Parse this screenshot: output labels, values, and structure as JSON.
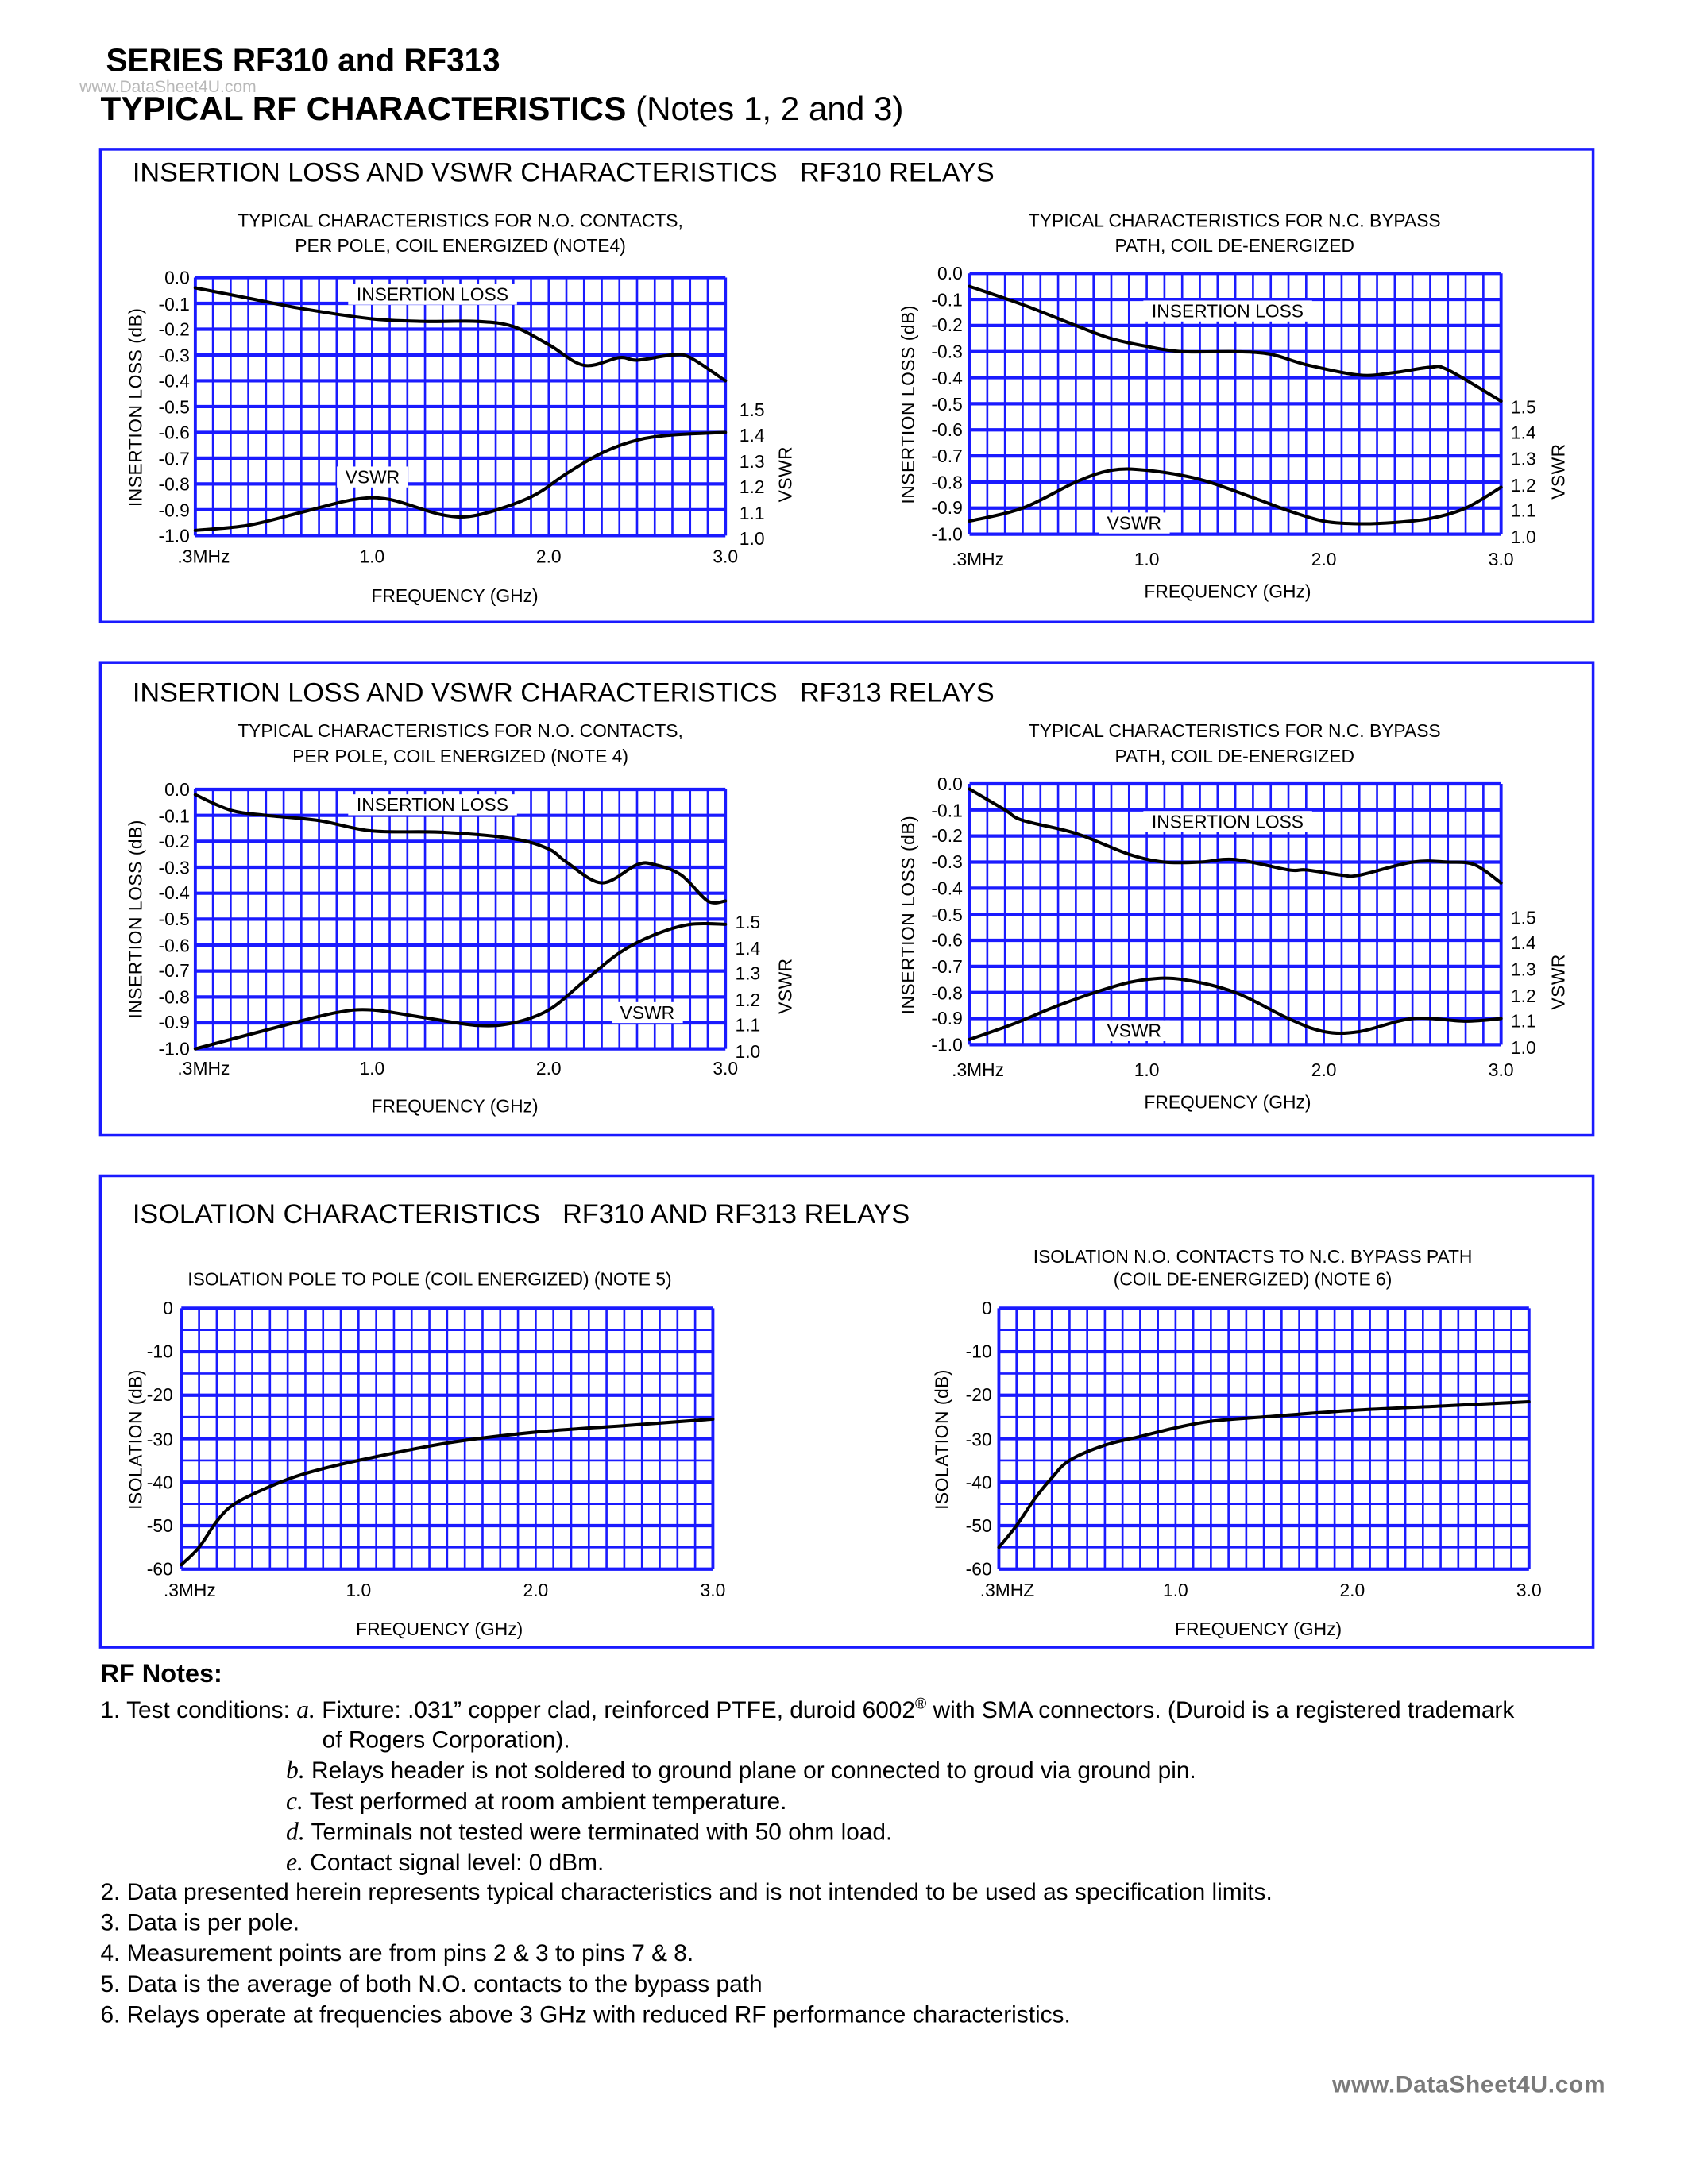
{
  "header": {
    "series_title": "SERIES RF310 and RF313",
    "watermark": "www.DataSheet4U.com",
    "main_title_bold": "TYPICAL RF CHARACTERISTICS",
    "main_title_notes": "(Notes 1, 2 and 3)"
  },
  "sections": [
    {
      "title": "INSERTION LOSS AND VSWR CHARACTERISTICS",
      "subtitle": "RF310 RELAYS"
    },
    {
      "title": "INSERTION LOSS AND VSWR CHARACTERISTICS",
      "subtitle": "RF313 RELAYS"
    },
    {
      "title": "ISOLATION CHARACTERISTICS",
      "subtitle": "RF310 AND RF313 RELAYS"
    }
  ],
  "colors": {
    "grid": "#1a1aff",
    "curve": "#000000",
    "border": "#1a1aff"
  },
  "chart_data": [
    {
      "type": "line",
      "title_lines": [
        "TYPICAL CHARACTERISTICS FOR N.O. CONTACTS,",
        "PER POLE, COIL ENERGIZED (NOTE4)"
      ],
      "xlabel": "FREQUENCY (GHz)",
      "ylabel": "INSERTION LOSS (dB)",
      "y2label": "VSWR",
      "xlim": [
        0,
        3
      ],
      "ylim": [
        -1.0,
        0.0
      ],
      "y2lim": [
        1.0,
        2.0
      ],
      "grid": true,
      "grid_columns": 30,
      "x_ticks": [
        {
          "value": 0,
          "label": ".3MHz"
        },
        {
          "value": 1,
          "label": "1.0"
        },
        {
          "value": 2,
          "label": "2.0"
        },
        {
          "value": 3,
          "label": "3.0"
        }
      ],
      "y_ticks": [
        "0.0",
        "-0.1",
        "-0.2",
        "-0.3",
        "-0.4",
        "-0.5",
        "-0.6",
        "-0.7",
        "-0.8",
        "-0.9",
        "-1.0"
      ],
      "y2_ticks": [
        "1.5",
        "1.4",
        "1.3",
        "1.2",
        "1.1",
        "1.0"
      ],
      "series": [
        {
          "name": "INSERTION LOSS",
          "axis": "left",
          "points": [
            [
              0,
              -0.04
            ],
            [
              0.3,
              -0.08
            ],
            [
              0.6,
              -0.12
            ],
            [
              1.0,
              -0.16
            ],
            [
              1.3,
              -0.17
            ],
            [
              1.6,
              -0.17
            ],
            [
              1.8,
              -0.19
            ],
            [
              2.0,
              -0.26
            ],
            [
              2.2,
              -0.34
            ],
            [
              2.4,
              -0.31
            ],
            [
              2.5,
              -0.32
            ],
            [
              2.7,
              -0.3
            ],
            [
              2.8,
              -0.31
            ],
            [
              3.0,
              -0.4
            ]
          ]
        },
        {
          "name": "VSWR",
          "axis": "right",
          "points": [
            [
              0,
              1.02
            ],
            [
              0.3,
              1.04
            ],
            [
              0.6,
              1.09
            ],
            [
              0.9,
              1.14
            ],
            [
              1.1,
              1.14
            ],
            [
              1.4,
              1.08
            ],
            [
              1.6,
              1.08
            ],
            [
              1.9,
              1.15
            ],
            [
              2.1,
              1.24
            ],
            [
              2.3,
              1.32
            ],
            [
              2.5,
              1.37
            ],
            [
              2.7,
              1.39
            ],
            [
              3.0,
              1.4
            ]
          ]
        }
      ]
    },
    {
      "type": "line",
      "title_lines": [
        "TYPICAL CHARACTERISTICS FOR N.C. BYPASS",
        "PATH, COIL DE-ENERGIZED"
      ],
      "xlabel": "FREQUENCY (GHz)",
      "ylabel": "INSERTION LOSS (dB)",
      "y2label": "VSWR",
      "xlim": [
        0,
        3
      ],
      "ylim": [
        -1.0,
        0.0
      ],
      "y2lim": [
        1.0,
        2.0
      ],
      "grid": true,
      "grid_columns": 30,
      "x_ticks": [
        {
          "value": 0,
          "label": ".3MHz"
        },
        {
          "value": 1,
          "label": "1.0"
        },
        {
          "value": 2,
          "label": "2.0"
        },
        {
          "value": 3,
          "label": "3.0"
        }
      ],
      "y_ticks": [
        "0.0",
        "-0.1",
        "-0.2",
        "-0.3",
        "-0.4",
        "-0.5",
        "-0.6",
        "-0.7",
        "-0.8",
        "-0.9",
        "-1.0"
      ],
      "y2_ticks": [
        "1.5",
        "1.4",
        "1.3",
        "1.2",
        "1.1",
        "1.0"
      ],
      "series": [
        {
          "name": "INSERTION LOSS",
          "axis": "left",
          "points": [
            [
              0,
              -0.05
            ],
            [
              0.3,
              -0.12
            ],
            [
              0.6,
              -0.2
            ],
            [
              0.8,
              -0.25
            ],
            [
              1.0,
              -0.28
            ],
            [
              1.2,
              -0.3
            ],
            [
              1.5,
              -0.3
            ],
            [
              1.7,
              -0.31
            ],
            [
              1.9,
              -0.35
            ],
            [
              2.2,
              -0.39
            ],
            [
              2.4,
              -0.38
            ],
            [
              2.6,
              -0.36
            ],
            [
              2.7,
              -0.37
            ],
            [
              3.0,
              -0.49
            ]
          ]
        },
        {
          "name": "VSWR",
          "axis": "right",
          "points": [
            [
              0,
              1.05
            ],
            [
              0.3,
              1.1
            ],
            [
              0.6,
              1.2
            ],
            [
              0.8,
              1.245
            ],
            [
              1.0,
              1.245
            ],
            [
              1.3,
              1.21
            ],
            [
              1.6,
              1.14
            ],
            [
              1.8,
              1.09
            ],
            [
              2.0,
              1.05
            ],
            [
              2.2,
              1.04
            ],
            [
              2.4,
              1.045
            ],
            [
              2.6,
              1.06
            ],
            [
              2.8,
              1.1
            ],
            [
              3.0,
              1.18
            ]
          ]
        }
      ]
    },
    {
      "type": "line",
      "title_lines": [
        "TYPICAL CHARACTERISTICS FOR N.O. CONTACTS,",
        "PER POLE, COIL ENERGIZED (NOTE 4)"
      ],
      "xlabel": "FREQUENCY (GHz)",
      "ylabel": "INSERTION LOSS (dB)",
      "y2label": "VSWR",
      "xlim": [
        0,
        3
      ],
      "ylim": [
        -1.0,
        0.0
      ],
      "y2lim": [
        1.0,
        2.0
      ],
      "grid": true,
      "grid_columns": 30,
      "x_ticks": [
        {
          "value": 0,
          "label": ".3MHz"
        },
        {
          "value": 1,
          "label": "1.0"
        },
        {
          "value": 2,
          "label": "2.0"
        },
        {
          "value": 3,
          "label": "3.0"
        }
      ],
      "y_ticks": [
        "0.0",
        "-0.1",
        "-0.2",
        "-0.3",
        "-0.4",
        "-0.5",
        "-0.6",
        "-0.7",
        "-0.8",
        "-0.9",
        "-1.0"
      ],
      "y2_ticks": [
        "1.5",
        "1.4",
        "1.3",
        "1.2",
        "1.1",
        "1.0"
      ],
      "series": [
        {
          "name": "INSERTION LOSS",
          "axis": "left",
          "points": [
            [
              0,
              -0.02
            ],
            [
              0.2,
              -0.08
            ],
            [
              0.4,
              -0.1
            ],
            [
              0.7,
              -0.12
            ],
            [
              1.0,
              -0.16
            ],
            [
              1.4,
              -0.165
            ],
            [
              1.8,
              -0.19
            ],
            [
              2.0,
              -0.23
            ],
            [
              2.1,
              -0.28
            ],
            [
              2.3,
              -0.36
            ],
            [
              2.5,
              -0.29
            ],
            [
              2.6,
              -0.29
            ],
            [
              2.75,
              -0.33
            ],
            [
              2.9,
              -0.43
            ],
            [
              3.0,
              -0.43
            ]
          ]
        },
        {
          "name": "VSWR",
          "axis": "right",
          "points": [
            [
              0,
              1.0
            ],
            [
              0.5,
              1.09
            ],
            [
              0.8,
              1.14
            ],
            [
              1.0,
              1.15
            ],
            [
              1.3,
              1.12
            ],
            [
              1.6,
              1.09
            ],
            [
              1.8,
              1.1
            ],
            [
              2.0,
              1.15
            ],
            [
              2.2,
              1.26
            ],
            [
              2.4,
              1.37
            ],
            [
              2.6,
              1.44
            ],
            [
              2.8,
              1.48
            ],
            [
              3.0,
              1.48
            ]
          ]
        }
      ]
    },
    {
      "type": "line",
      "title_lines": [
        "TYPICAL CHARACTERISTICS FOR N.C. BYPASS",
        "PATH, COIL DE-ENERGIZED"
      ],
      "xlabel": "FREQUENCY (GHz)",
      "ylabel": "INSERTION LOSS (dB)",
      "y2label": "VSWR",
      "xlim": [
        0,
        3
      ],
      "ylim": [
        -1.0,
        0.0
      ],
      "y2lim": [
        1.0,
        2.0
      ],
      "grid": true,
      "grid_columns": 30,
      "x_ticks": [
        {
          "value": 0,
          "label": ".3MHz"
        },
        {
          "value": 1,
          "label": "1.0"
        },
        {
          "value": 2,
          "label": "2.0"
        },
        {
          "value": 3,
          "label": "3.0"
        }
      ],
      "y_ticks": [
        "0.0",
        "-0.1",
        "-0.2",
        "-0.3",
        "-0.4",
        "-0.5",
        "-0.6",
        "-0.7",
        "-0.8",
        "-0.9",
        "-1.0"
      ],
      "y2_ticks": [
        "1.5",
        "1.4",
        "1.3",
        "1.2",
        "1.1",
        "1.0"
      ],
      "series": [
        {
          "name": "INSERTION LOSS",
          "axis": "left",
          "points": [
            [
              0,
              -0.02
            ],
            [
              0.2,
              -0.1
            ],
            [
              0.3,
              -0.14
            ],
            [
              0.6,
              -0.19
            ],
            [
              0.9,
              -0.27
            ],
            [
              1.1,
              -0.3
            ],
            [
              1.3,
              -0.3
            ],
            [
              1.5,
              -0.29
            ],
            [
              1.8,
              -0.33
            ],
            [
              1.9,
              -0.33
            ],
            [
              2.1,
              -0.35
            ],
            [
              2.2,
              -0.35
            ],
            [
              2.5,
              -0.3
            ],
            [
              2.7,
              -0.3
            ],
            [
              2.85,
              -0.31
            ],
            [
              3.0,
              -0.38
            ]
          ]
        },
        {
          "name": "VSWR",
          "axis": "right",
          "points": [
            [
              0,
              1.02
            ],
            [
              0.25,
              1.08
            ],
            [
              0.5,
              1.15
            ],
            [
              0.8,
              1.22
            ],
            [
              1.0,
              1.25
            ],
            [
              1.2,
              1.25
            ],
            [
              1.5,
              1.2
            ],
            [
              1.8,
              1.1
            ],
            [
              2.0,
              1.05
            ],
            [
              2.2,
              1.05
            ],
            [
              2.5,
              1.1
            ],
            [
              2.8,
              1.09
            ],
            [
              3.0,
              1.1
            ]
          ]
        }
      ]
    },
    {
      "type": "line",
      "title_lines": [
        "ISOLATION POLE TO POLE (COIL ENERGIZED) (NOTE 5)"
      ],
      "xlabel": "FREQUENCY (GHz)",
      "ylabel": "ISOLATION (dB)",
      "xlim": [
        0,
        3
      ],
      "ylim": [
        -60,
        0
      ],
      "grid": true,
      "grid_columns": 30,
      "x_ticks": [
        {
          "value": 0,
          "label": ".3MHz"
        },
        {
          "value": 1,
          "label": "1.0"
        },
        {
          "value": 2,
          "label": "2.0"
        },
        {
          "value": 3,
          "label": "3.0"
        }
      ],
      "y_ticks": [
        "0",
        "-10",
        "-20",
        "-30",
        "-40",
        "-50",
        "-60"
      ],
      "series": [
        {
          "axis": "left",
          "points": [
            [
              0,
              -59
            ],
            [
              0.1,
              -55
            ],
            [
              0.2,
              -49
            ],
            [
              0.3,
              -45
            ],
            [
              0.5,
              -41
            ],
            [
              0.7,
              -38
            ],
            [
              1.0,
              -35
            ],
            [
              1.5,
              -31
            ],
            [
              2.0,
              -28.5
            ],
            [
              2.5,
              -27
            ],
            [
              3.0,
              -25.5
            ]
          ]
        }
      ]
    },
    {
      "type": "line",
      "title_lines": [
        "ISOLATION N.O. CONTACTS TO N.C. BYPASS PATH",
        "(COIL DE-ENERGIZED) (NOTE 6)"
      ],
      "xlabel": "FREQUENCY (GHz)",
      "ylabel": "ISOLATION (dB)",
      "xlim": [
        0,
        3
      ],
      "ylim": [
        -60,
        0
      ],
      "grid": true,
      "grid_columns": 30,
      "x_ticks": [
        {
          "value": 0,
          "label": ".3MHZ"
        },
        {
          "value": 1,
          "label": "1.0"
        },
        {
          "value": 2,
          "label": "2.0"
        },
        {
          "value": 3,
          "label": "3.0"
        }
      ],
      "y_ticks": [
        "0",
        "-10",
        "-20",
        "-30",
        "-40",
        "-50",
        "-60"
      ],
      "series": [
        {
          "axis": "left",
          "points": [
            [
              0,
              -55
            ],
            [
              0.1,
              -50
            ],
            [
              0.2,
              -44
            ],
            [
              0.3,
              -39
            ],
            [
              0.4,
              -35
            ],
            [
              0.6,
              -31.5
            ],
            [
              0.8,
              -29.5
            ],
            [
              1.0,
              -27.5
            ],
            [
              1.2,
              -26
            ],
            [
              1.5,
              -25
            ],
            [
              2.0,
              -23.5
            ],
            [
              2.5,
              -22.5
            ],
            [
              3.0,
              -21.5
            ]
          ]
        }
      ]
    }
  ],
  "notes": {
    "heading": "RF Notes:",
    "note1_prefix": "1. Test conditions:",
    "note1_items": [
      {
        "letter": "a.",
        "text": "Fixture: .031” copper clad, reinforced PTFE, duroid 6002",
        "sup": "®",
        "text2": " with SMA connectors. (Duroid is a registered trademark",
        "continuation": "of Rogers Corporation)."
      },
      {
        "letter": "b.",
        "text": "Relays header is not soldered to ground plane or connected to groud via ground pin."
      },
      {
        "letter": "c.",
        "text": "Test performed at room ambient temperature."
      },
      {
        "letter": "d.",
        "text": "Terminals not tested were terminated with 50 ohm load."
      },
      {
        "letter": "e.",
        "text": "Contact signal level: 0 dBm."
      }
    ],
    "items": [
      "2. Data presented herein represents typical characteristics and is not intended to be used as specification limits.",
      "3. Data is per pole.",
      "4. Measurement points are from pins 2 & 3 to pins 7 & 8.",
      "5. Data is the average of both N.O. contacts to the bypass path",
      "6. Relays operate at frequencies above 3 GHz with reduced RF performance characteristics."
    ]
  },
  "footer_watermark": "www.DataSheet4U.com"
}
